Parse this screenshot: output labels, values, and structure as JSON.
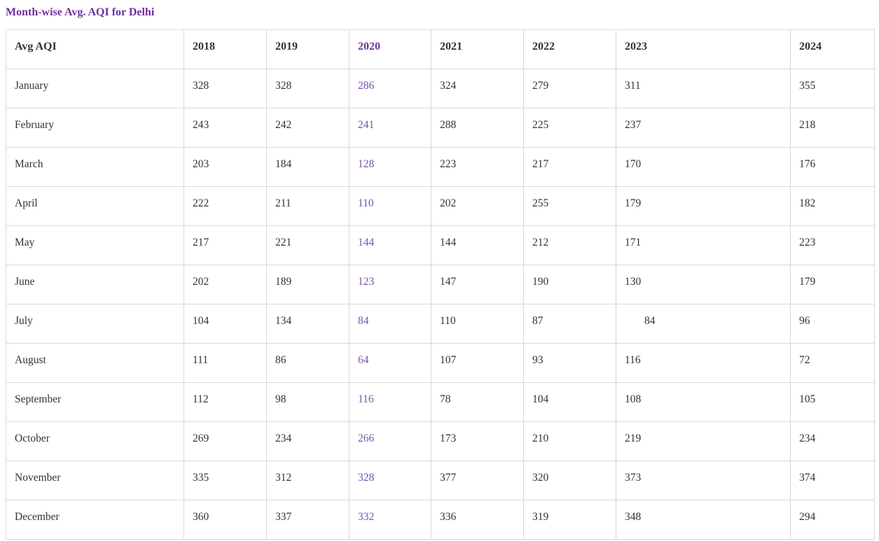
{
  "title": "Month-wise Avg. AQI for Delhi",
  "colors": {
    "title": "#70309f",
    "year_2020_header": "#6e35a0",
    "year_2020_values": "#7c52a8",
    "text": "#333333",
    "border": "#d8d8d8"
  },
  "chart_data": {
    "type": "table",
    "title": "Month-wise Avg. AQI for Delhi",
    "columns": [
      "Avg AQI",
      "2018",
      "2019",
      "2020",
      "2021",
      "2022",
      "2023",
      "2024"
    ],
    "highlighted_column": "2020",
    "rows": [
      [
        "January",
        328,
        328,
        286,
        324,
        279,
        311,
        355
      ],
      [
        "February",
        243,
        242,
        241,
        288,
        225,
        237,
        218
      ],
      [
        "March",
        203,
        184,
        128,
        223,
        217,
        170,
        176
      ],
      [
        "April",
        222,
        211,
        110,
        202,
        255,
        179,
        182
      ],
      [
        "May",
        217,
        221,
        144,
        144,
        212,
        171,
        223
      ],
      [
        "June",
        202,
        189,
        123,
        147,
        190,
        130,
        179
      ],
      [
        "July",
        104,
        134,
        84,
        110,
        87,
        84,
        96
      ],
      [
        "August",
        111,
        86,
        64,
        107,
        93,
        116,
        72
      ],
      [
        "September",
        112,
        98,
        116,
        78,
        104,
        108,
        105
      ],
      [
        "October",
        269,
        234,
        266,
        173,
        210,
        219,
        234
      ],
      [
        "November",
        335,
        312,
        328,
        377,
        320,
        373,
        374
      ],
      [
        "December",
        360,
        337,
        332,
        336,
        319,
        348,
        294
      ]
    ],
    "indented_cell": {
      "row": "July",
      "column": "2023"
    }
  }
}
